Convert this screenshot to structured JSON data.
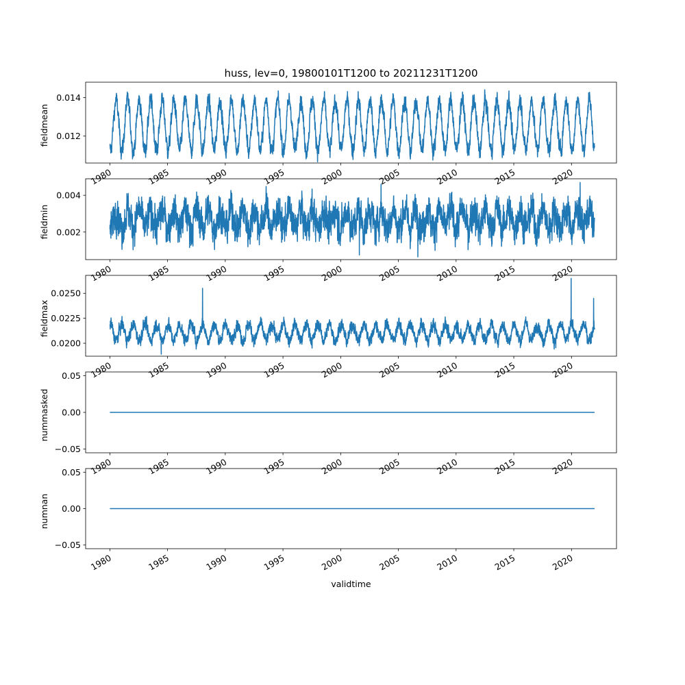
{
  "title": "huss, lev=0, 19800101T1200 to 20211231T1200",
  "chart_data": [
    {
      "type": "line",
      "ylabel": "fieldmean",
      "xlabel": "",
      "x_range": [
        "1980-01-01",
        "2021-12-31"
      ],
      "xlim": [
        1977.9,
        2023.9
      ],
      "ylim": [
        0.0106,
        0.0148
      ],
      "yticks": [
        0.012,
        0.014
      ],
      "ytick_labels": [
        "0.012",
        "0.014"
      ],
      "xtick_labels": [
        "1980",
        "1985",
        "1990",
        "1995",
        "2000",
        "2005",
        "2010",
        "2015",
        "2020"
      ],
      "series": [
        {
          "color": "#1f77b4",
          "seasonal_model": {
            "mean": 0.01255,
            "amplitude": 0.0013,
            "noise": 0.00035,
            "peak_month": 7
          }
        }
      ],
      "notable_points": []
    },
    {
      "type": "line",
      "ylabel": "fieldmin",
      "xlabel": "",
      "x_range": [
        "1980-01-01",
        "2021-12-31"
      ],
      "xlim": [
        1977.9,
        2023.9
      ],
      "ylim": [
        0.0005,
        0.0049
      ],
      "yticks": [
        0.002,
        0.004
      ],
      "ytick_labels": [
        "0.002",
        "0.004"
      ],
      "xtick_labels": [
        "1980",
        "1985",
        "1990",
        "1995",
        "2000",
        "2005",
        "2010",
        "2015",
        "2020"
      ],
      "series": [
        {
          "color": "#1f77b4",
          "seasonal_model": {
            "mean": 0.0027,
            "amplitude": 0.0005,
            "noise": 0.00075,
            "peak_month": 7
          }
        }
      ],
      "notable_points": [
        {
          "x": "2001-08-15",
          "y": 0.00075
        },
        {
          "x": "2006-09-10",
          "y": 0.00065
        },
        {
          "x": "2003-07-01",
          "y": 0.0046
        },
        {
          "x": "2020-10-01",
          "y": 0.0047
        }
      ]
    },
    {
      "type": "line",
      "ylabel": "fieldmax",
      "xlabel": "",
      "x_range": [
        "1980-01-01",
        "2021-12-31"
      ],
      "xlim": [
        1977.9,
        2023.9
      ],
      "ylim": [
        0.0187,
        0.0268
      ],
      "yticks": [
        0.02,
        0.0225,
        0.025
      ],
      "ytick_labels": [
        "0.0200",
        "0.0225",
        "0.0250"
      ],
      "xtick_labels": [
        "1980",
        "1985",
        "1990",
        "1995",
        "2000",
        "2005",
        "2010",
        "2015",
        "2020"
      ],
      "series": [
        {
          "color": "#1f77b4",
          "seasonal_model": {
            "mean": 0.0211,
            "amplitude": 0.0008,
            "noise": 0.0005,
            "peak_month": 1
          }
        }
      ],
      "notable_points": [
        {
          "x": "1988-01-10",
          "y": 0.0255
        },
        {
          "x": "2019-12-20",
          "y": 0.0265
        },
        {
          "x": "2021-12-01",
          "y": 0.0245
        },
        {
          "x": "1984-06-15",
          "y": 0.0189
        }
      ]
    },
    {
      "type": "line",
      "ylabel": "nummasked",
      "xlabel": "",
      "x_range": [
        "1980-01-01",
        "2021-12-31"
      ],
      "xlim": [
        1977.9,
        2023.9
      ],
      "ylim": [
        -0.055,
        0.055
      ],
      "yticks": [
        -0.05,
        0,
        0.05
      ],
      "ytick_labels": [
        "−0.05",
        "0.00",
        "0.05"
      ],
      "xtick_labels": [
        "1980",
        "1985",
        "1990",
        "1995",
        "2000",
        "2005",
        "2010",
        "2015",
        "2020"
      ],
      "series": [
        {
          "color": "#1f77b4",
          "constant": 0
        }
      ],
      "notable_points": []
    },
    {
      "type": "line",
      "ylabel": "numnan",
      "xlabel": "validtime",
      "x_range": [
        "1980-01-01",
        "2021-12-31"
      ],
      "xlim": [
        1977.9,
        2023.9
      ],
      "ylim": [
        -0.055,
        0.055
      ],
      "yticks": [
        -0.05,
        0,
        0.05
      ],
      "ytick_labels": [
        "−0.05",
        "0.00",
        "0.05"
      ],
      "xtick_labels": [
        "1980",
        "1985",
        "1990",
        "1995",
        "2000",
        "2005",
        "2010",
        "2015",
        "2020"
      ],
      "series": [
        {
          "color": "#1f77b4",
          "constant": 0
        }
      ],
      "notable_points": []
    }
  ]
}
